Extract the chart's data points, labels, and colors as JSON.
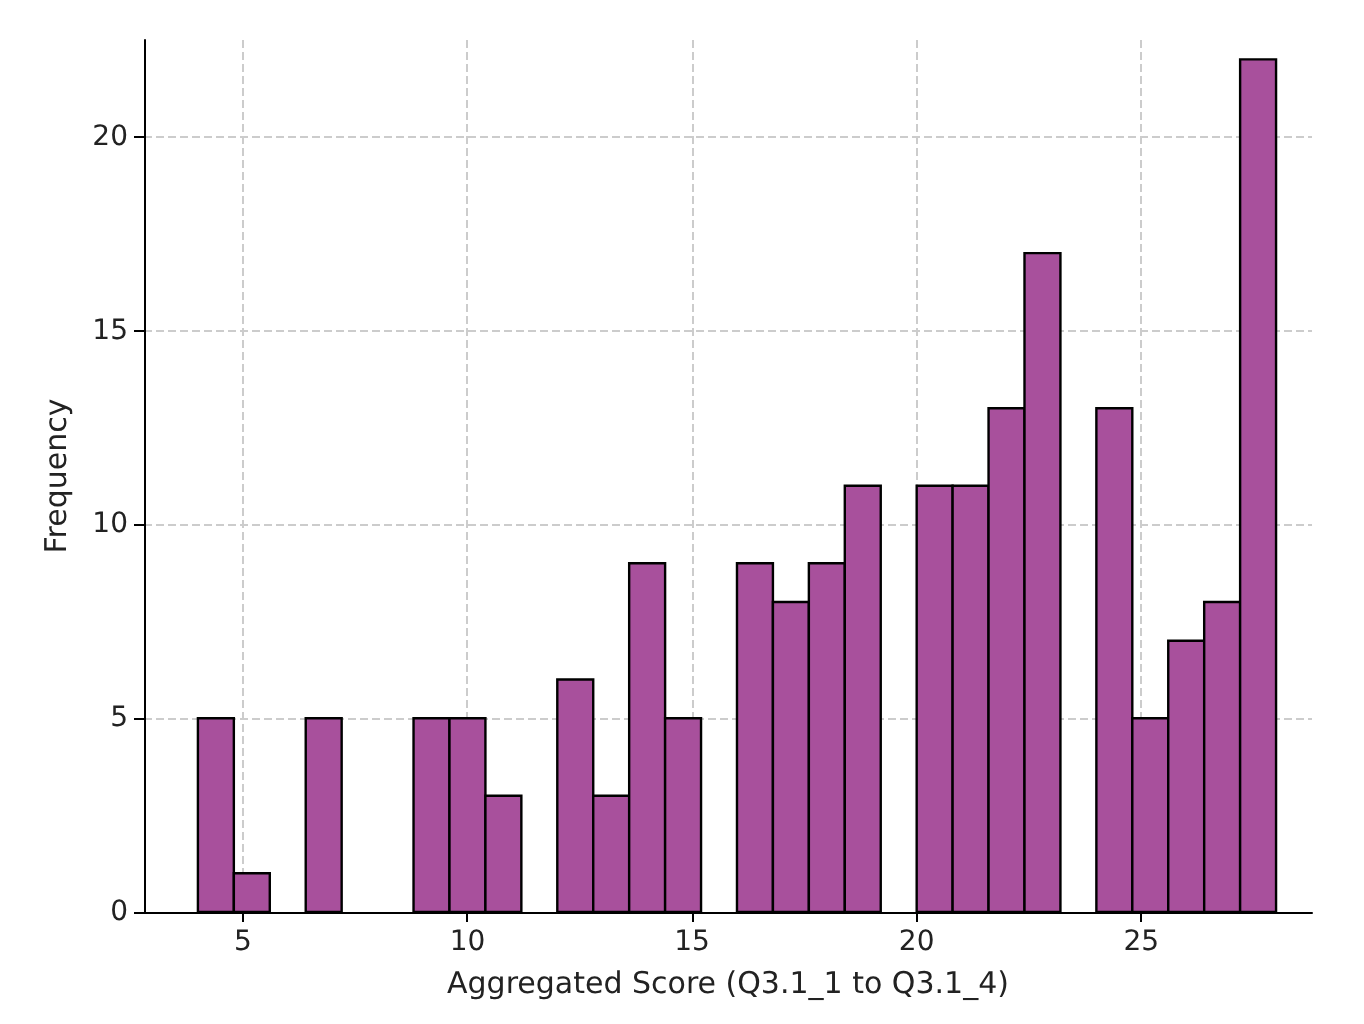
{
  "chart_data": {
    "type": "histogram",
    "xlabel": "Aggregated Score (Q3.1_1 to Q3.1_4)",
    "ylabel": "Frequency",
    "bins": [
      4,
      4.8,
      5.6,
      6.4,
      7.2,
      8,
      8.8,
      9.6,
      10.4,
      11.2,
      12,
      12.8,
      13.6,
      14.4,
      15.2,
      16,
      16.8,
      17.6,
      18.4,
      19.2,
      20,
      20.8,
      21.6,
      22.4,
      23.2,
      24,
      24.8,
      25.6,
      26.4,
      27.2,
      28
    ],
    "values": [
      5,
      1,
      0,
      5,
      0,
      0,
      5,
      5,
      3,
      0,
      6,
      3,
      9,
      5,
      0,
      9,
      8,
      9,
      11,
      0,
      11,
      11,
      13,
      17,
      0,
      13,
      5,
      7,
      8,
      22
    ],
    "color": "#a8509c",
    "xlim": [
      2.8,
      28.8
    ],
    "xticks": [
      5,
      10,
      15,
      20,
      25
    ],
    "ylim": [
      0,
      22.5
    ],
    "yticks": [
      0,
      5,
      10,
      15,
      20
    ],
    "grid": true
  }
}
